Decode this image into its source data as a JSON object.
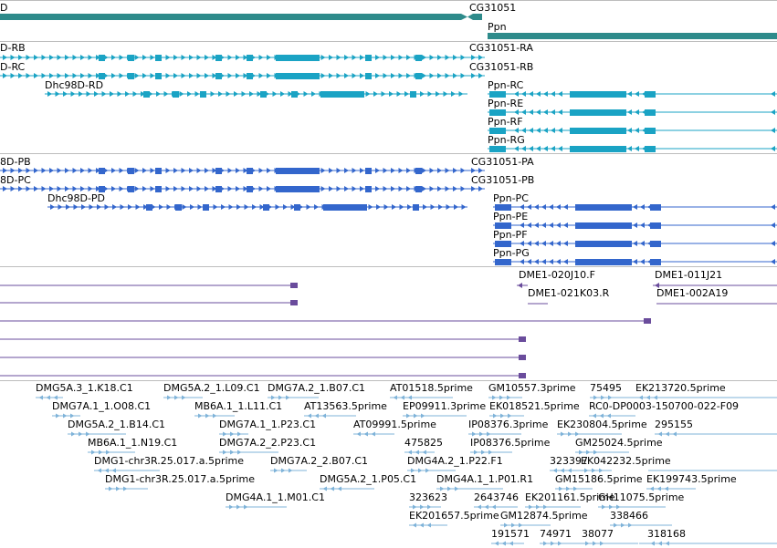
{
  "colors": {
    "gene": "#2e8b8b",
    "transcript": "#1aa3c4",
    "protein": "#3366cc",
    "clone": "#6a4c9c",
    "est": "#7fb3d9"
  },
  "tracks": {
    "genes": [
      {
        "label": "D"
      },
      {
        "label": "CG31051"
      },
      {
        "label": "Ppn"
      }
    ],
    "transcripts": [
      {
        "label": "D-RB"
      },
      {
        "label": "D-RC"
      },
      {
        "label": "Dhc98D-RD"
      },
      {
        "label": "CG31051-RA"
      },
      {
        "label": "CG31051-RB"
      },
      {
        "label": "Ppn-RC"
      },
      {
        "label": "Ppn-RE"
      },
      {
        "label": "Ppn-RF"
      },
      {
        "label": "Ppn-RG"
      }
    ],
    "proteins": [
      {
        "label": "8D-PB"
      },
      {
        "label": "8D-PC"
      },
      {
        "label": "Dhc98D-PD"
      },
      {
        "label": "CG31051-PA"
      },
      {
        "label": "CG31051-PB"
      },
      {
        "label": "Ppn-PC"
      },
      {
        "label": "Ppn-PE"
      },
      {
        "label": "Ppn-PF"
      },
      {
        "label": "Ppn-PG"
      }
    ],
    "clones": [
      {
        "label": "DME1-020J10.F"
      },
      {
        "label": "DME1-011J21"
      },
      {
        "label": "DME1-021K03.R"
      },
      {
        "label": "DME1-002A19"
      }
    ],
    "ests": [
      {
        "label": "DMG5A.3_1.K18.C1"
      },
      {
        "label": "DMG5A.2_1.L09.C1"
      },
      {
        "label": "DMG7A.2_1.B07.C1"
      },
      {
        "label": "AT01518.5prime"
      },
      {
        "label": "GM10557.3prime"
      },
      {
        "label": "75495"
      },
      {
        "label": "EK213720.5prime"
      },
      {
        "label": "DMG7A.1_1.O08.C1"
      },
      {
        "label": "MB6A.1_1.L11.C1"
      },
      {
        "label": "AT13563.5prime"
      },
      {
        "label": "EP09911.3prime"
      },
      {
        "label": "EK018521.5prime"
      },
      {
        "label": "RC0-DP0003-150700-022-F09"
      },
      {
        "label": "DMG5A.2_1.B14.C1"
      },
      {
        "label": "DMG7A.1_1.P23.C1"
      },
      {
        "label": "AT09991.5prime"
      },
      {
        "label": "IP08376.3prime"
      },
      {
        "label": "EK230804.5prime"
      },
      {
        "label": "295155"
      },
      {
        "label": "MB6A.1_1.N19.C1"
      },
      {
        "label": "DMG7A.2_2.P23.C1"
      },
      {
        "label": "475825"
      },
      {
        "label": "IP08376.5prime"
      },
      {
        "label": "GM25024.5prime"
      },
      {
        "label": "DMG1-chr3R.25.017.a.5prime"
      },
      {
        "label": "DMG7A.2_2.B07.C1"
      },
      {
        "label": "DMG4A.2_1.P22.F1"
      },
      {
        "label": "323397"
      },
      {
        "label": "EK042232.5prime"
      },
      {
        "label": "DMG1-chr3R.25.017.a.5prime"
      },
      {
        "label": "DMG5A.2_1.P05.C1"
      },
      {
        "label": "DMG4A.1_1.P01.R1"
      },
      {
        "label": "GM15186.5prime"
      },
      {
        "label": "EK199743.5prime"
      },
      {
        "label": "DMG4A.1_1.M01.C1"
      },
      {
        "label": "323623"
      },
      {
        "label": "2643746"
      },
      {
        "label": "EK201161.5prime"
      },
      {
        "label": "GH11075.5prime"
      },
      {
        "label": "EK201657.5prime"
      },
      {
        "label": "GM12874.5prime"
      },
      {
        "label": "338466"
      },
      {
        "label": "191571"
      },
      {
        "label": "74971"
      },
      {
        "label": "38077"
      },
      {
        "label": "318168"
      }
    ]
  }
}
